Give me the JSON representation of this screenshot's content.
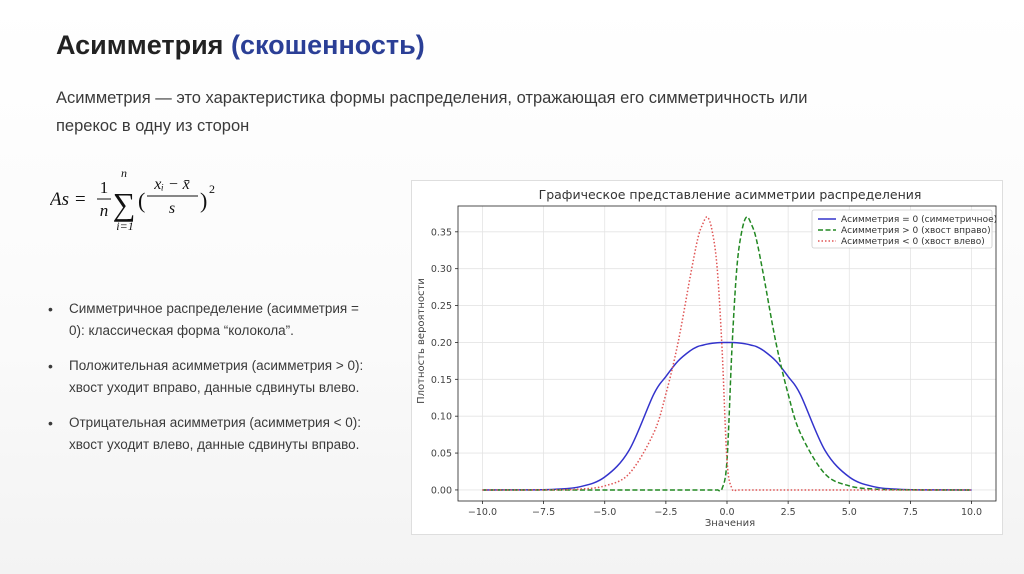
{
  "slide": {
    "title": "Асимметрия",
    "title_accent": "(скошенность)",
    "intro": "Асимметрия — это характеристика формы распределения, отражающая его симметричность или перекос в одну из сторон",
    "formula": {
      "lhs": "As =",
      "frac_num": "1",
      "frac_den": "n",
      "sum_top": "n",
      "sum_bottom": "i=1",
      "inner_num": "xᵢ − x̄",
      "inner_den": "s",
      "power": "2"
    },
    "bullets": [
      "Симметричное распределение (асимметрия = 0): классическая форма “колокола”.",
      "Положительная асимметрия (асимметрия > 0): хвост уходит вправо, данные сдвинуты влево.",
      "Отрицательная асимметрия (асимметрия < 0): хвост уходит влево, данные сдвинуты вправо."
    ],
    "bullet_marker": "•",
    "colors": {
      "title": "#222222",
      "accent": "#2b3f96",
      "text": "#3a3a3a"
    }
  },
  "chart_data": {
    "type": "line",
    "title": "Графическое представление асимметрии распределения",
    "xlabel": "Значения",
    "ylabel": "Плотность вероятности",
    "xlim": [
      -11,
      11
    ],
    "ylim": [
      -0.015,
      0.385
    ],
    "x_ticks": [
      -10,
      -7.5,
      -5,
      -2.5,
      0,
      2.5,
      5,
      7.5,
      10
    ],
    "x_tick_labels": [
      "−10.0",
      "−7.5",
      "−5.0",
      "−2.5",
      "0.0",
      "2.5",
      "5.0",
      "7.5",
      "10.0"
    ],
    "y_ticks": [
      0,
      0.05,
      0.1,
      0.15,
      0.2,
      0.25,
      0.3,
      0.35
    ],
    "y_tick_labels": [
      "0.00",
      "0.05",
      "0.10",
      "0.15",
      "0.20",
      "0.25",
      "0.30",
      "0.35"
    ],
    "grid": true,
    "legend_position": "top-right",
    "x": [
      -10,
      -8,
      -7,
      -6,
      -5,
      -4,
      -3,
      -2.5,
      -2,
      -1.5,
      -1.2,
      -1,
      -0.8,
      -0.6,
      -0.4,
      -0.2,
      0,
      0.2,
      0.4,
      0.6,
      0.8,
      1,
      1.2,
      1.5,
      2,
      2.5,
      3,
      4,
      5,
      6,
      7,
      8,
      10
    ],
    "series": [
      {
        "name": "Асимметрия = 0 (симметричное)",
        "color": "#3333cc",
        "dash": "solid",
        "values": [
          0,
          0.0001,
          0.0009,
          0.0044,
          0.0175,
          0.054,
          0.1295,
          0.1537,
          0.1748,
          0.1888,
          0.1944,
          0.1962,
          0.1978,
          0.1989,
          0.1996,
          0.1999,
          0.2,
          0.1999,
          0.1996,
          0.1989,
          0.1978,
          0.1962,
          0.1944,
          0.1888,
          0.1748,
          0.1537,
          0.1295,
          0.054,
          0.0175,
          0.0044,
          0.0009,
          0.0001,
          0
        ]
      },
      {
        "name": "Асимметрия > 0 (хвост вправо)",
        "color": "#228822",
        "dash": "dashed",
        "values": [
          0,
          0,
          0,
          0,
          0,
          0,
          0,
          0,
          0,
          0,
          0,
          0,
          0,
          0,
          0,
          0.002,
          0.04,
          0.19,
          0.3,
          0.35,
          0.37,
          0.36,
          0.34,
          0.29,
          0.2,
          0.13,
          0.077,
          0.022,
          0.0055,
          0.0012,
          0.0002,
          0,
          0
        ]
      },
      {
        "name": "Асимметрия < 0 (хвост влево)",
        "color": "#e05555",
        "dash": "dotted",
        "values": [
          0,
          0,
          0.0002,
          0.0012,
          0.0055,
          0.022,
          0.077,
          0.13,
          0.2,
          0.29,
          0.34,
          0.36,
          0.37,
          0.35,
          0.3,
          0.19,
          0.04,
          0.002,
          0,
          0,
          0,
          0,
          0,
          0,
          0,
          0,
          0,
          0,
          0,
          0,
          0,
          0,
          0
        ]
      }
    ]
  }
}
